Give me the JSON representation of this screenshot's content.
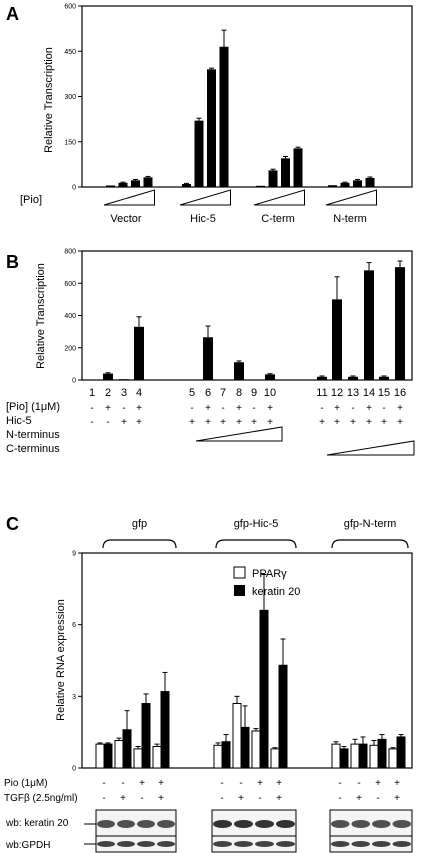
{
  "panels": {
    "a": "A",
    "b": "B",
    "c": "C"
  },
  "chart_data": [
    {
      "type": "bar",
      "panel": "A",
      "ylabel": "Relative Transcription",
      "ylim": [
        0,
        600
      ],
      "yticks": [
        "0",
        "150",
        "300",
        "450",
        "600"
      ],
      "xaxis_row_label": "[Pio]",
      "groups": [
        "Vector",
        "Hic-5",
        "C-term",
        "N-term"
      ],
      "values": [
        [
          5,
          14,
          22,
          32
        ],
        [
          10,
          220,
          390,
          465
        ],
        [
          4,
          55,
          95,
          128
        ],
        [
          6,
          14,
          22,
          30
        ]
      ],
      "errors": [
        [
          1,
          2,
          3,
          3
        ],
        [
          2,
          8,
          4,
          55
        ],
        [
          1,
          4,
          6,
          4
        ],
        [
          1,
          2,
          3,
          3
        ]
      ]
    },
    {
      "type": "bar",
      "panel": "B",
      "ylabel": "Relative Transcription",
      "ylim": [
        0,
        800
      ],
      "yticks": [
        "0",
        "200",
        "400",
        "600",
        "800"
      ],
      "lane_labels": [
        "1",
        "2",
        "3",
        "4",
        "5",
        "6",
        "7",
        "8",
        "9",
        "10",
        "11",
        "12",
        "13",
        "14",
        "15",
        "16"
      ],
      "values": [
        3,
        40,
        5,
        330,
        3,
        265,
        3,
        110,
        3,
        35,
        20,
        500,
        20,
        680,
        20,
        700
      ],
      "errors": [
        0,
        5,
        0,
        62,
        0,
        70,
        0,
        8,
        0,
        4,
        5,
        140,
        5,
        48,
        5,
        38
      ],
      "row_labels": [
        "[Pio] (1μM)",
        "Hic-5",
        "N-terminus",
        "C-terminus"
      ],
      "pio_row": [
        "-",
        "+",
        "-",
        "+",
        "-",
        "+",
        "-",
        "+",
        "-",
        "+",
        "-",
        "+",
        "-",
        "+",
        "-",
        "+"
      ],
      "hic5_row": [
        "-",
        "-",
        "+",
        "+",
        "+",
        "+",
        "+",
        "+",
        "+",
        "+",
        "+",
        "+",
        "+",
        "+",
        "+",
        "+"
      ]
    },
    {
      "type": "bar",
      "panel": "C",
      "ylabel": "Relative RNA expression",
      "ylim": [
        0,
        9
      ],
      "yticks": [
        "0",
        "3",
        "6",
        "9"
      ],
      "group_titles": [
        "gfp",
        "gfp-Hic-5",
        "gfp-N-term"
      ],
      "series": [
        {
          "name": "PPARγ",
          "fill": "#ffffff",
          "values": [
            [
              1.0,
              1.15,
              0.8,
              0.9
            ],
            [
              0.95,
              2.7,
              1.55,
              0.8
            ],
            [
              1.0,
              1.0,
              0.95,
              0.8
            ]
          ],
          "errors": [
            [
              0.05,
              0.1,
              0.1,
              0.1
            ],
            [
              0.1,
              0.3,
              0.1,
              0.05
            ],
            [
              0.1,
              0.2,
              0.2,
              0.05
            ]
          ]
        },
        {
          "name": "keratin 20",
          "fill": "#000000",
          "values": [
            [
              1.0,
              1.6,
              2.7,
              3.2
            ],
            [
              1.1,
              1.7,
              6.6,
              4.3
            ],
            [
              0.8,
              1.0,
              1.2,
              1.3
            ]
          ],
          "errors": [
            [
              0.05,
              0.8,
              0.4,
              0.8
            ],
            [
              0.3,
              0.9,
              1.5,
              1.1
            ],
            [
              0.1,
              0.3,
              0.2,
              0.1
            ]
          ]
        }
      ],
      "row_labels": [
        "Pio (1μM)",
        "TGFβ (2.5ng/ml)"
      ],
      "pio_row": [
        "-",
        "-",
        "+",
        "+"
      ],
      "tgf_row": [
        "-",
        "+",
        "-",
        "+"
      ],
      "blot_labels": [
        "wb: keratin 20",
        "wb:GPDH"
      ]
    }
  ]
}
